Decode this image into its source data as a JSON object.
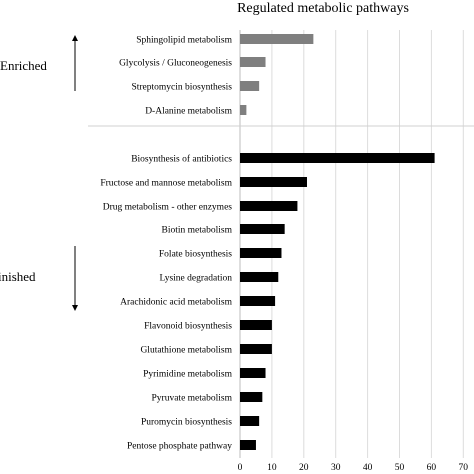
{
  "chart_data": {
    "type": "bar",
    "orientation": "horizontal",
    "title": "Regulated metabolic pathways",
    "xlim": [
      0,
      70
    ],
    "xticks": [
      0,
      10,
      20,
      30,
      40,
      50,
      60,
      70
    ],
    "grid": "vertical",
    "groups": [
      {
        "name": "Enriched",
        "color": "#7f7f7f",
        "categories": [
          "Sphingolipid metabolism",
          "Glycolysis / Gluconeogenesis",
          "Streptomycin biosynthesis",
          "D-Alanine metabolism"
        ],
        "values": [
          23,
          8,
          6,
          2
        ]
      },
      {
        "name": "inished",
        "color": "#000000",
        "categories": [
          "Biosynthesis of antibiotics",
          "Fructose and mannose metabolism",
          "Drug metabolism - other enzymes",
          "Biotin metabolism",
          "Folate biosynthesis",
          "Lysine degradation",
          "Arachidonic acid metabolism",
          "Flavonoid biosynthesis",
          "Glutathione metabolism",
          "Pyrimidine metabolism",
          "Pyruvate metabolism",
          "Puromycin biosynthesis",
          "Pentose phosphate pathway"
        ],
        "values": [
          61,
          21,
          18,
          14,
          13,
          12,
          11,
          10,
          10,
          8,
          7,
          6,
          5
        ]
      }
    ]
  }
}
